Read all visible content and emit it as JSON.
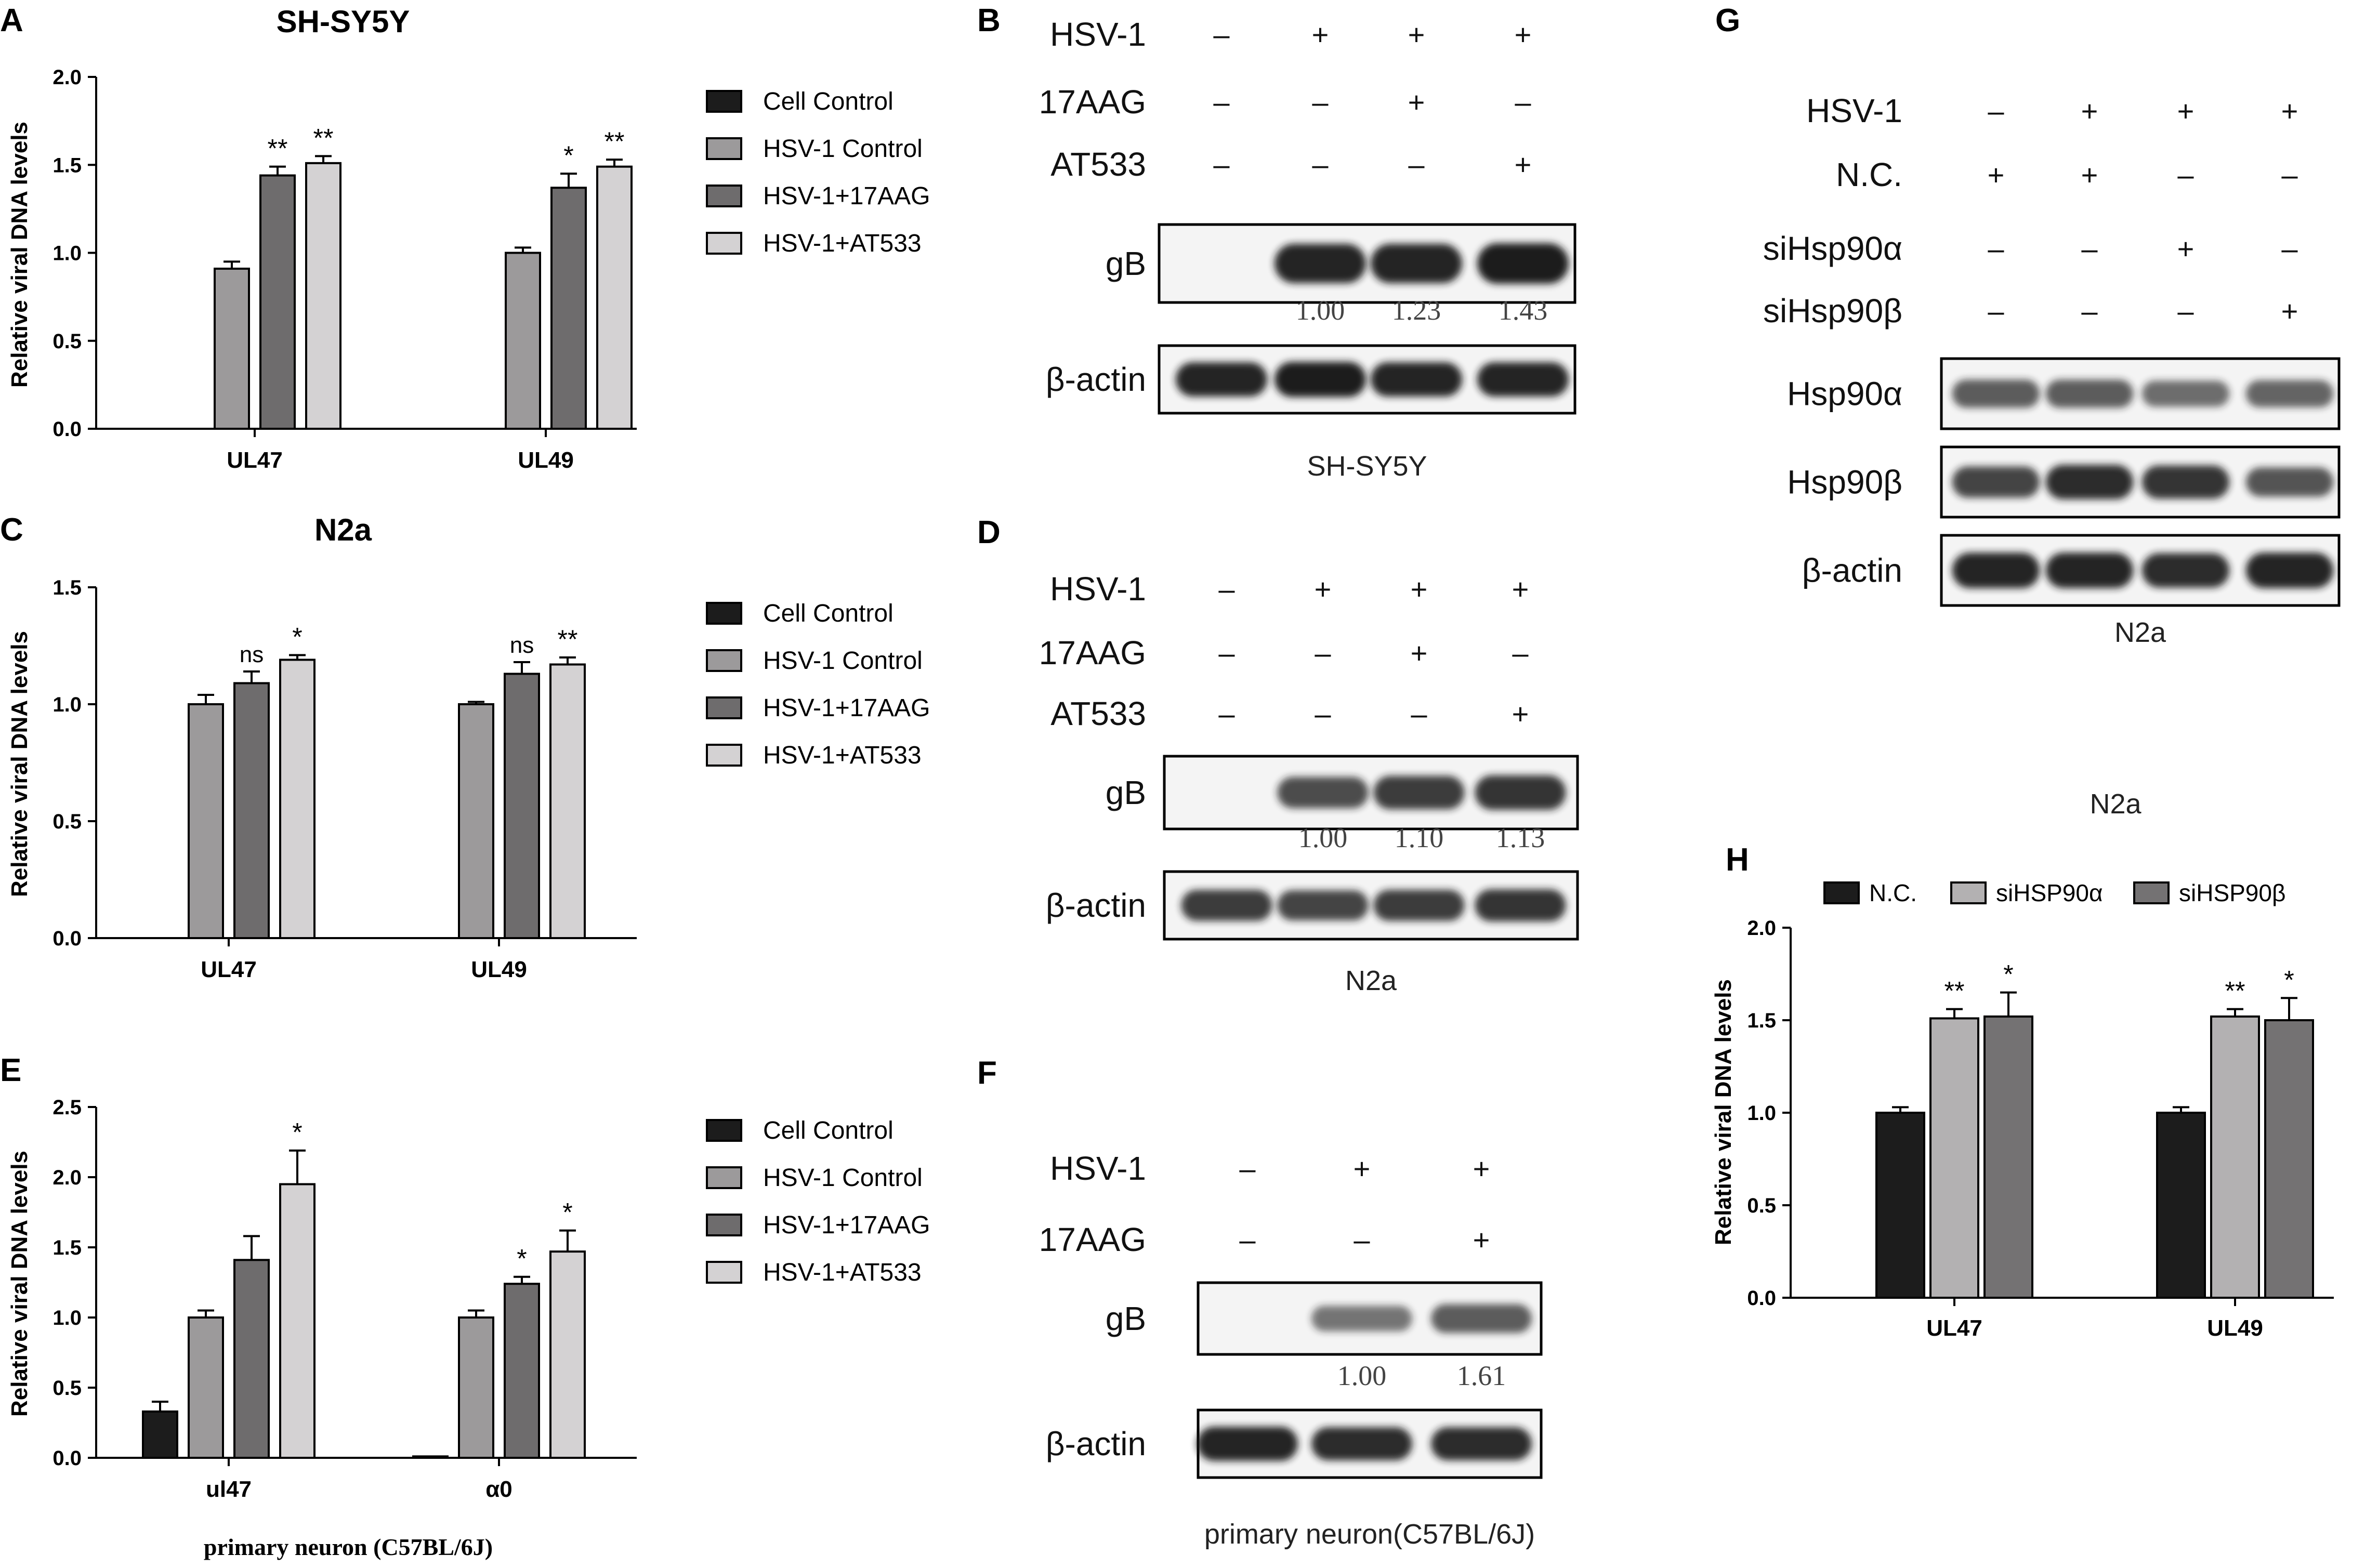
{
  "colors": {
    "cell_control": "#1c1c1c",
    "hsv1_control": "#9c9a9b",
    "hsv1_17aag": "#6e6c6d",
    "hsv1_at533": "#d4d2d3",
    "nc": "#1c1c1c",
    "si_alpha": "#b3b1b2",
    "si_beta": "#747273",
    "band": "#1a1a1a"
  },
  "chart_data": [
    {
      "id": "A",
      "panel_letter": "A",
      "type": "bar",
      "title": "SH-SY5Y",
      "ylabel": "Relative viral DNA levels",
      "xlabel": "",
      "ylim": [
        0,
        2.0
      ],
      "yticks": [
        "0.0",
        "0.5",
        "1.0",
        "1.5",
        "2.0"
      ],
      "categories": [
        "UL47",
        "UL49"
      ],
      "legend_position": "right",
      "series": [
        {
          "name": "Cell Control",
          "color_key": "cell_control",
          "values": [
            0,
            0
          ],
          "errors": [
            0,
            0
          ],
          "sig": [
            "",
            ""
          ]
        },
        {
          "name": "HSV-1 Control",
          "color_key": "hsv1_control",
          "values": [
            0.91,
            1.0
          ],
          "errors": [
            0.04,
            0.03
          ],
          "sig": [
            "",
            ""
          ]
        },
        {
          "name": "HSV-1+17AAG",
          "color_key": "hsv1_17aag",
          "values": [
            1.44,
            1.37
          ],
          "errors": [
            0.05,
            0.08
          ],
          "sig": [
            "**",
            "*"
          ]
        },
        {
          "name": "HSV-1+AT533",
          "color_key": "hsv1_at533",
          "values": [
            1.51,
            1.49
          ],
          "errors": [
            0.04,
            0.04
          ],
          "sig": [
            "**",
            "**"
          ]
        }
      ]
    },
    {
      "id": "C",
      "panel_letter": "C",
      "type": "bar",
      "title": "N2a",
      "ylabel": "Relative viral DNA levels",
      "xlabel": "",
      "ylim": [
        0,
        1.5
      ],
      "yticks": [
        "0.0",
        "0.5",
        "1.0",
        "1.5"
      ],
      "categories": [
        "UL47",
        "UL49"
      ],
      "legend_position": "right",
      "series": [
        {
          "name": "Cell Control",
          "color_key": "cell_control",
          "values": [
            0,
            0
          ],
          "errors": [
            0,
            0
          ],
          "sig": [
            "",
            ""
          ]
        },
        {
          "name": "HSV-1 Control",
          "color_key": "hsv1_control",
          "values": [
            1.0,
            1.0
          ],
          "errors": [
            0.04,
            0.01
          ],
          "sig": [
            "",
            ""
          ]
        },
        {
          "name": "HSV-1+17AAG",
          "color_key": "hsv1_17aag",
          "values": [
            1.09,
            1.13
          ],
          "errors": [
            0.05,
            0.05
          ],
          "sig": [
            "ns",
            "ns"
          ]
        },
        {
          "name": "HSV-1+AT533",
          "color_key": "hsv1_at533",
          "values": [
            1.19,
            1.17
          ],
          "errors": [
            0.02,
            0.03
          ],
          "sig": [
            "*",
            "**"
          ]
        }
      ]
    },
    {
      "id": "E",
      "panel_letter": "E",
      "type": "bar",
      "title": "",
      "ylabel": "Relative viral DNA levels",
      "xlabel": "primary neuron (C57BL/6J)",
      "ylim": [
        0,
        2.5
      ],
      "yticks": [
        "0.0",
        "0.5",
        "1.0",
        "1.5",
        "2.0",
        "2.5"
      ],
      "categories": [
        "ul47",
        "α0"
      ],
      "legend_position": "right",
      "series": [
        {
          "name": "Cell Control",
          "color_key": "cell_control",
          "values": [
            0.33,
            0.01
          ],
          "errors": [
            0.07,
            0
          ],
          "sig": [
            "",
            ""
          ]
        },
        {
          "name": "HSV-1 Control",
          "color_key": "hsv1_control",
          "values": [
            1.0,
            1.0
          ],
          "errors": [
            0.05,
            0.05
          ],
          "sig": [
            "",
            ""
          ]
        },
        {
          "name": "HSV-1+17AAG",
          "color_key": "hsv1_17aag",
          "values": [
            1.41,
            1.24
          ],
          "errors": [
            0.17,
            0.05
          ],
          "sig": [
            "",
            "*"
          ]
        },
        {
          "name": "HSV-1+AT533",
          "color_key": "hsv1_at533",
          "values": [
            1.95,
            1.47
          ],
          "errors": [
            0.24,
            0.15
          ],
          "sig": [
            "*",
            "*"
          ]
        }
      ]
    },
    {
      "id": "H",
      "panel_letter": "H",
      "type": "bar",
      "title": "",
      "ylabel": "Relative viral DNA levels",
      "xlabel": "",
      "ylim": [
        0,
        2.0
      ],
      "yticks": [
        "0.0",
        "0.5",
        "1.0",
        "1.5",
        "2.0"
      ],
      "categories": [
        "UL47",
        "UL49"
      ],
      "legend_position": "top",
      "series": [
        {
          "name": "N.C.",
          "color_key": "nc",
          "values": [
            1.0,
            1.0
          ],
          "errors": [
            0.03,
            0.03
          ],
          "sig": [
            "",
            ""
          ]
        },
        {
          "name": "siHSP90α",
          "color_key": "si_alpha",
          "values": [
            1.51,
            1.52
          ],
          "errors": [
            0.05,
            0.04
          ],
          "sig": [
            "**",
            "**"
          ]
        },
        {
          "name": "siHSP90β",
          "color_key": "si_beta",
          "values": [
            1.52,
            1.5
          ],
          "errors": [
            0.13,
            0.12
          ],
          "sig": [
            "*",
            "*"
          ]
        }
      ]
    }
  ],
  "blots": [
    {
      "id": "B",
      "panel_letter": "B",
      "caption": "SH-SY5Y",
      "lanes": 4,
      "conditions": [
        {
          "label": "HSV-1",
          "signs": [
            "–",
            "+",
            "+",
            "+"
          ]
        },
        {
          "label": "17AAG",
          "signs": [
            "–",
            "–",
            "+",
            "–"
          ]
        },
        {
          "label": "AT533",
          "signs": [
            "–",
            "–",
            "–",
            "+"
          ]
        }
      ],
      "rows": [
        {
          "label": "gB",
          "intensities": [
            0.0,
            0.95,
            0.95,
            1.0
          ],
          "quant": [
            "",
            "1.00",
            "1.23",
            "1.43"
          ]
        },
        {
          "label": "β-actin",
          "intensities": [
            0.95,
            1.0,
            0.95,
            0.95
          ],
          "quant": []
        }
      ]
    },
    {
      "id": "D",
      "panel_letter": "D",
      "caption": "N2a",
      "lanes": 4,
      "conditions": [
        {
          "label": "HSV-1",
          "signs": [
            "–",
            "+",
            "+",
            "+"
          ]
        },
        {
          "label": "17AAG",
          "signs": [
            "–",
            "–",
            "+",
            "–"
          ]
        },
        {
          "label": "AT533",
          "signs": [
            "–",
            "–",
            "–",
            "+"
          ]
        }
      ],
      "rows": [
        {
          "label": "gB",
          "intensities": [
            0.0,
            0.7,
            0.8,
            0.85
          ],
          "quant": [
            "",
            "1.00",
            "1.10",
            "1.13"
          ]
        },
        {
          "label": "β-actin",
          "intensities": [
            0.8,
            0.75,
            0.8,
            0.85
          ],
          "quant": []
        }
      ]
    },
    {
      "id": "F",
      "panel_letter": "F",
      "caption": "primary neuron(C57BL/6J)",
      "lanes": 3,
      "conditions": [
        {
          "label": "HSV-1",
          "signs": [
            "–",
            "+",
            "+"
          ]
        },
        {
          "label": "17AAG",
          "signs": [
            "–",
            "–",
            "+"
          ]
        }
      ],
      "rows": [
        {
          "label": "gB",
          "intensities": [
            0.0,
            0.45,
            0.6
          ],
          "quant": [
            "",
            "1.00",
            "1.61"
          ]
        },
        {
          "label": "β-actin",
          "intensities": [
            0.95,
            0.9,
            0.9
          ],
          "quant": []
        }
      ]
    },
    {
      "id": "G",
      "panel_letter": "G",
      "caption": "N2a",
      "lanes": 4,
      "conditions": [
        {
          "label": "HSV-1",
          "signs": [
            "–",
            "+",
            "+",
            "+"
          ]
        },
        {
          "label": "N.C.",
          "signs": [
            "+",
            "+",
            "–",
            "–"
          ]
        },
        {
          "label": "siHsp90α",
          "signs": [
            "–",
            "–",
            "+",
            "–"
          ]
        },
        {
          "label": "siHsp90β",
          "signs": [
            "–",
            "–",
            "–",
            "+"
          ]
        }
      ],
      "rows": [
        {
          "label": "Hsp90α",
          "intensities": [
            0.6,
            0.6,
            0.5,
            0.55
          ],
          "quant": []
        },
        {
          "label": "Hsp90β",
          "intensities": [
            0.75,
            0.9,
            0.85,
            0.65
          ],
          "quant": []
        },
        {
          "label": "β-actin",
          "intensities": [
            0.95,
            0.95,
            0.9,
            0.95
          ],
          "quant": []
        }
      ]
    }
  ],
  "extra_caption_g": "N2a"
}
